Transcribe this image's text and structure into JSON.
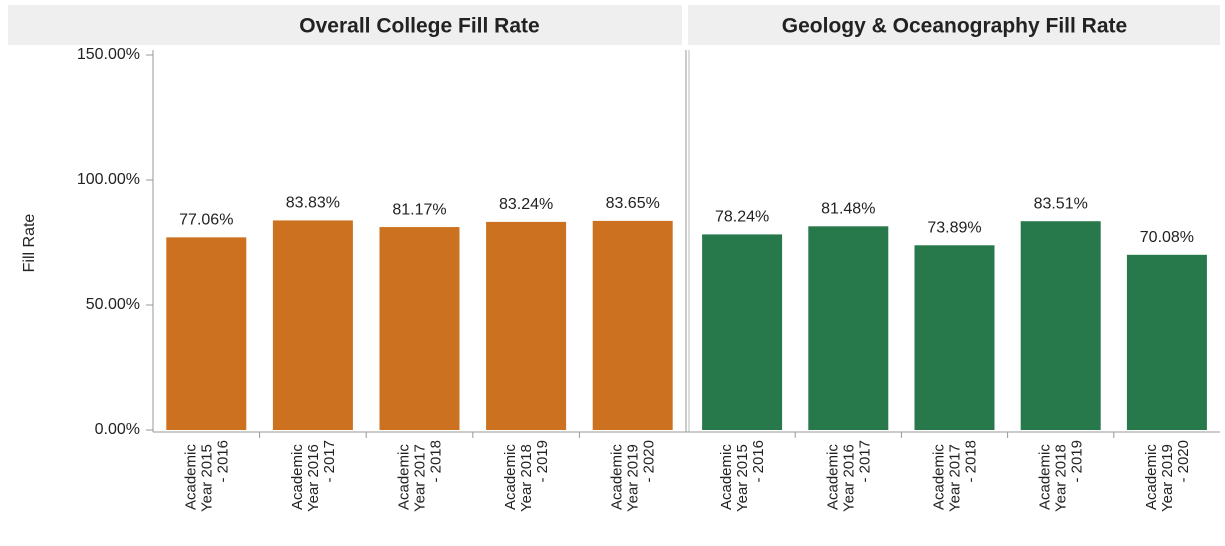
{
  "chart_data": [
    {
      "type": "bar",
      "title": "Overall College Fill Rate",
      "y_label": "Fill Rate",
      "categories": [
        "Academic Year 2015 - 2016",
        "Academic Year 2016 - 2017",
        "Academic Year 2017 - 2018",
        "Academic Year 2018 - 2019",
        "Academic Year 2019 - 2020"
      ],
      "values": [
        77.06,
        83.83,
        81.17,
        83.24,
        83.65
      ],
      "value_labels": [
        "77.06%",
        "83.83%",
        "81.17%",
        "83.24%",
        "83.65%"
      ],
      "color": "#cc711f",
      "ylim": [
        0,
        150
      ],
      "yticks": [
        {
          "value": 0,
          "label": "0.00%"
        },
        {
          "value": 50,
          "label": "50.00%"
        },
        {
          "value": 100,
          "label": "100.00%"
        },
        {
          "value": 150,
          "label": "150.00%"
        }
      ]
    },
    {
      "type": "bar",
      "title": "Geology & Oceanography Fill Rate",
      "categories": [
        "Academic Year 2015 - 2016",
        "Academic Year 2016 - 2017",
        "Academic Year 2017 - 2018",
        "Academic Year 2018 - 2019",
        "Academic Year 2019 - 2020"
      ],
      "values": [
        78.24,
        81.48,
        73.89,
        83.51,
        70.08
      ],
      "value_labels": [
        "78.24%",
        "81.48%",
        "73.89%",
        "83.51%",
        "70.08%"
      ],
      "color": "#27784a",
      "ylim": [
        0,
        150
      ]
    }
  ]
}
